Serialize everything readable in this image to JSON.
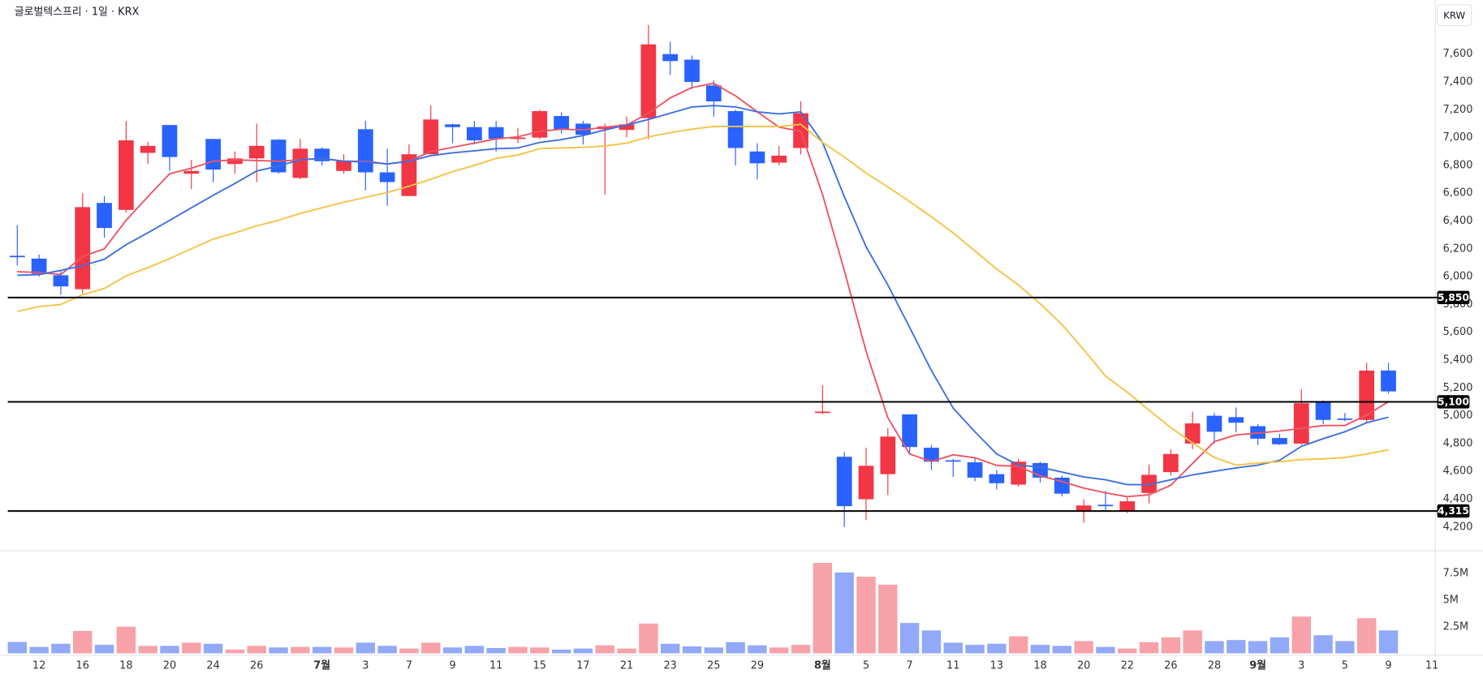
{
  "chart_data": {
    "type": "candlestick",
    "title": "글로벌텍스프리 · 1일 · KRX",
    "currency": "KRW",
    "categories": [
      null,
      "12",
      null,
      "16",
      null,
      "18",
      null,
      "20",
      null,
      "24",
      null,
      "26",
      null,
      null,
      "7월",
      null,
      "3",
      null,
      "7",
      null,
      "9",
      null,
      "11",
      null,
      "15",
      null,
      "17",
      null,
      "21",
      null,
      "23",
      null,
      "25",
      null,
      "29",
      null,
      null,
      "8월",
      null,
      "5",
      null,
      "7",
      null,
      "11",
      null,
      "13",
      null,
      "18",
      null,
      "20",
      null,
      "22",
      null,
      "26",
      null,
      "28",
      null,
      "9월",
      null,
      "3",
      null,
      "5",
      null,
      "9",
      null,
      "11"
    ],
    "open": [
      6150,
      6130,
      6010,
      5910,
      6530,
      6480,
      6890,
      7090,
      6740,
      6990,
      6810,
      6850,
      6985,
      6710,
      6920,
      6760,
      7060,
      6750,
      6580,
      6880,
      7095,
      7075,
      7075,
      6990,
      7000,
      7155,
      7100,
      7060,
      7055,
      7140,
      7600,
      7560,
      7375,
      7190,
      6900,
      6820,
      6925,
      5020,
      4705,
      4400,
      4580,
      5010,
      4770,
      4680,
      4665,
      4580,
      4505,
      4660,
      4555,
      4310,
      4360,
      4310,
      4445,
      4595,
      4800,
      5000,
      4990,
      4925,
      4840,
      4800,
      5100,
      4980,
      4970,
      5325,
      null,
      null
    ],
    "high": [
      6370,
      6160,
      6040,
      6600,
      6580,
      7120,
      6970,
      7090,
      6840,
      6990,
      6900,
      7100,
      6990,
      6990,
      6930,
      6880,
      7120,
      6920,
      6950,
      7230,
      7100,
      7120,
      7120,
      7070,
      7200,
      7180,
      7120,
      7100,
      7150,
      7810,
      7690,
      7590,
      7410,
      7200,
      6960,
      6940,
      7260,
      5220,
      4740,
      4770,
      4910,
      5010,
      4790,
      4690,
      4700,
      4610,
      4690,
      4670,
      4570,
      4400,
      4460,
      4420,
      4650,
      4760,
      5030,
      5020,
      5060,
      4940,
      4870,
      5190,
      5110,
      5020,
      5380,
      5380,
      null,
      null
    ],
    "low": [
      6080,
      6000,
      5870,
      5880,
      6280,
      6460,
      6810,
      6760,
      6630,
      6680,
      6740,
      6680,
      6740,
      6700,
      6800,
      6740,
      6620,
      6510,
      6580,
      6880,
      6960,
      6950,
      6900,
      6960,
      6990,
      7030,
      6950,
      6590,
      7000,
      6990,
      7450,
      7350,
      7150,
      6800,
      6700,
      6800,
      6880,
      5010,
      4200,
      4250,
      4430,
      4720,
      4610,
      4560,
      4530,
      4470,
      4490,
      4520,
      4420,
      4230,
      4320,
      4300,
      4370,
      4570,
      4760,
      4800,
      4880,
      4790,
      4790,
      4790,
      4940,
      4960,
      4950,
      5160,
      null,
      null
    ],
    "close": [
      6140,
      6020,
      5930,
      6500,
      6350,
      6980,
      6940,
      6860,
      6760,
      6770,
      6850,
      6940,
      6750,
      6920,
      6830,
      6835,
      6750,
      6680,
      6880,
      7130,
      7075,
      6980,
      6990,
      7000,
      7190,
      7060,
      7020,
      7080,
      7095,
      7670,
      7550,
      7400,
      7260,
      6925,
      6815,
      6870,
      7175,
      5030,
      4350,
      4640,
      4850,
      4775,
      4670,
      4670,
      4555,
      4515,
      4670,
      4555,
      4440,
      4355,
      4350,
      4385,
      4575,
      4725,
      4945,
      4885,
      4950,
      4835,
      4795,
      5090,
      4970,
      4975,
      5325,
      5175,
      null,
      null
    ],
    "volume": [
      1070000,
      600000,
      900000,
      2100000,
      800000,
      2500000,
      700000,
      700000,
      1000000,
      900000,
      350000,
      700000,
      550000,
      600000,
      600000,
      550000,
      1000000,
      700000,
      450000,
      1000000,
      550000,
      700000,
      500000,
      600000,
      550000,
      350000,
      450000,
      750000,
      450000,
      2800000,
      900000,
      650000,
      550000,
      1050000,
      750000,
      550000,
      800000,
      8500000,
      7600000,
      7200000,
      6450000,
      2850000,
      2150000,
      1000000,
      800000,
      900000,
      1600000,
      800000,
      700000,
      1150000,
      600000,
      450000,
      1050000,
      1500000,
      2150000,
      1150000,
      1250000,
      1150000,
      1500000,
      3450000,
      1700000,
      1150000,
      3300000,
      2150000,
      null,
      null
    ],
    "up_color": "#f23645",
    "down_color": "#2962ff",
    "volume_up_color": "#f7a1a9",
    "volume_down_color": "#91a9f6",
    "moving_averages": [
      {
        "color": "#ef5361",
        "values": [
          6035,
          6030,
          6015,
          6145,
          6200,
          6405,
          6575,
          6740,
          6780,
          6830,
          6840,
          6835,
          6830,
          6840,
          6850,
          6830,
          6830,
          6810,
          6830,
          6900,
          6930,
          6960,
          6990,
          7005,
          7045,
          7060,
          7055,
          7075,
          7090,
          7175,
          7285,
          7360,
          7390,
          7300,
          7185,
          7075,
          7045,
          6590,
          6044,
          5463,
          4985,
          4725,
          4671,
          4719,
          4698,
          4643,
          4636,
          4568,
          4527,
          4480,
          4446,
          4418,
          4432,
          4500,
          4657,
          4814,
          4862,
          4876,
          4890,
          4910,
          4930,
          4930,
          5005,
          5101,
          null,
          null
        ]
      },
      {
        "color": "#3d6fe0",
        "values": [
          6010,
          6015,
          6045,
          6080,
          6125,
          6230,
          6315,
          6405,
          6495,
          6585,
          6670,
          6760,
          6795,
          6840,
          6850,
          6830,
          6825,
          6810,
          6830,
          6870,
          6890,
          6905,
          6920,
          6925,
          6965,
          6985,
          7015,
          7055,
          7090,
          7130,
          7175,
          7220,
          7230,
          7220,
          7185,
          7170,
          7185,
          6965,
          6575,
          6215,
          5940,
          5635,
          5325,
          5055,
          4885,
          4725,
          4645,
          4630,
          4595,
          4560,
          4540,
          4505,
          4505,
          4540,
          4575,
          4600,
          4625,
          4645,
          4680,
          4780,
          4835,
          4885,
          4950,
          4990,
          null,
          null
        ]
      },
      {
        "color": "#f5c242",
        "values": [
          5750,
          5785,
          5800,
          5870,
          5915,
          6005,
          6065,
          6130,
          6200,
          6270,
          6315,
          6365,
          6405,
          6455,
          6495,
          6535,
          6570,
          6605,
          6650,
          6700,
          6755,
          6800,
          6850,
          6875,
          6920,
          6925,
          6930,
          6940,
          6960,
          7005,
          7035,
          7060,
          7080,
          7080,
          7080,
          7080,
          7095,
          6965,
          6860,
          6745,
          6645,
          6540,
          6430,
          6315,
          6185,
          6055,
          5940,
          5805,
          5655,
          5475,
          5285,
          5170,
          5040,
          4915,
          4805,
          4700,
          4645,
          4660,
          4670,
          4685,
          4690,
          4700,
          4725,
          4755,
          null,
          null
        ]
      }
    ],
    "ylim": [
      4043,
      7989
    ],
    "yticks": [
      {
        "value": 4200,
        "label": "4,200"
      },
      {
        "value": 4400,
        "label": "4,400"
      },
      {
        "value": 4600,
        "label": "4,600"
      },
      {
        "value": 4800,
        "label": "4,800"
      },
      {
        "value": 5000,
        "label": "5,000"
      },
      {
        "value": 5200,
        "label": "5,200"
      },
      {
        "value": 5400,
        "label": "5,400"
      },
      {
        "value": 5600,
        "label": "5,600"
      },
      {
        "value": 5800,
        "label": "5,800"
      },
      {
        "value": 6000,
        "label": "6,000"
      },
      {
        "value": 6200,
        "label": "6,200"
      },
      {
        "value": 6400,
        "label": "6,400"
      },
      {
        "value": 6600,
        "label": "6,600"
      },
      {
        "value": 6800,
        "label": "6,800"
      },
      {
        "value": 7000,
        "label": "7,000"
      },
      {
        "value": 7200,
        "label": "7,200"
      },
      {
        "value": 7400,
        "label": "7,400"
      },
      {
        "value": 7600,
        "label": "7,600"
      }
    ],
    "hlines": [
      {
        "value": 5850,
        "label": "5,850"
      },
      {
        "value": 5100,
        "label": "5,100"
      },
      {
        "value": 4315,
        "label": "4,315"
      }
    ],
    "volume_lim": [
      0,
      9460000
    ],
    "volume_ticks": [
      {
        "value": 2500000,
        "label": "2.5M"
      },
      {
        "value": 5000000,
        "label": "5M"
      },
      {
        "value": 7500000,
        "label": "7.5M"
      }
    ]
  }
}
